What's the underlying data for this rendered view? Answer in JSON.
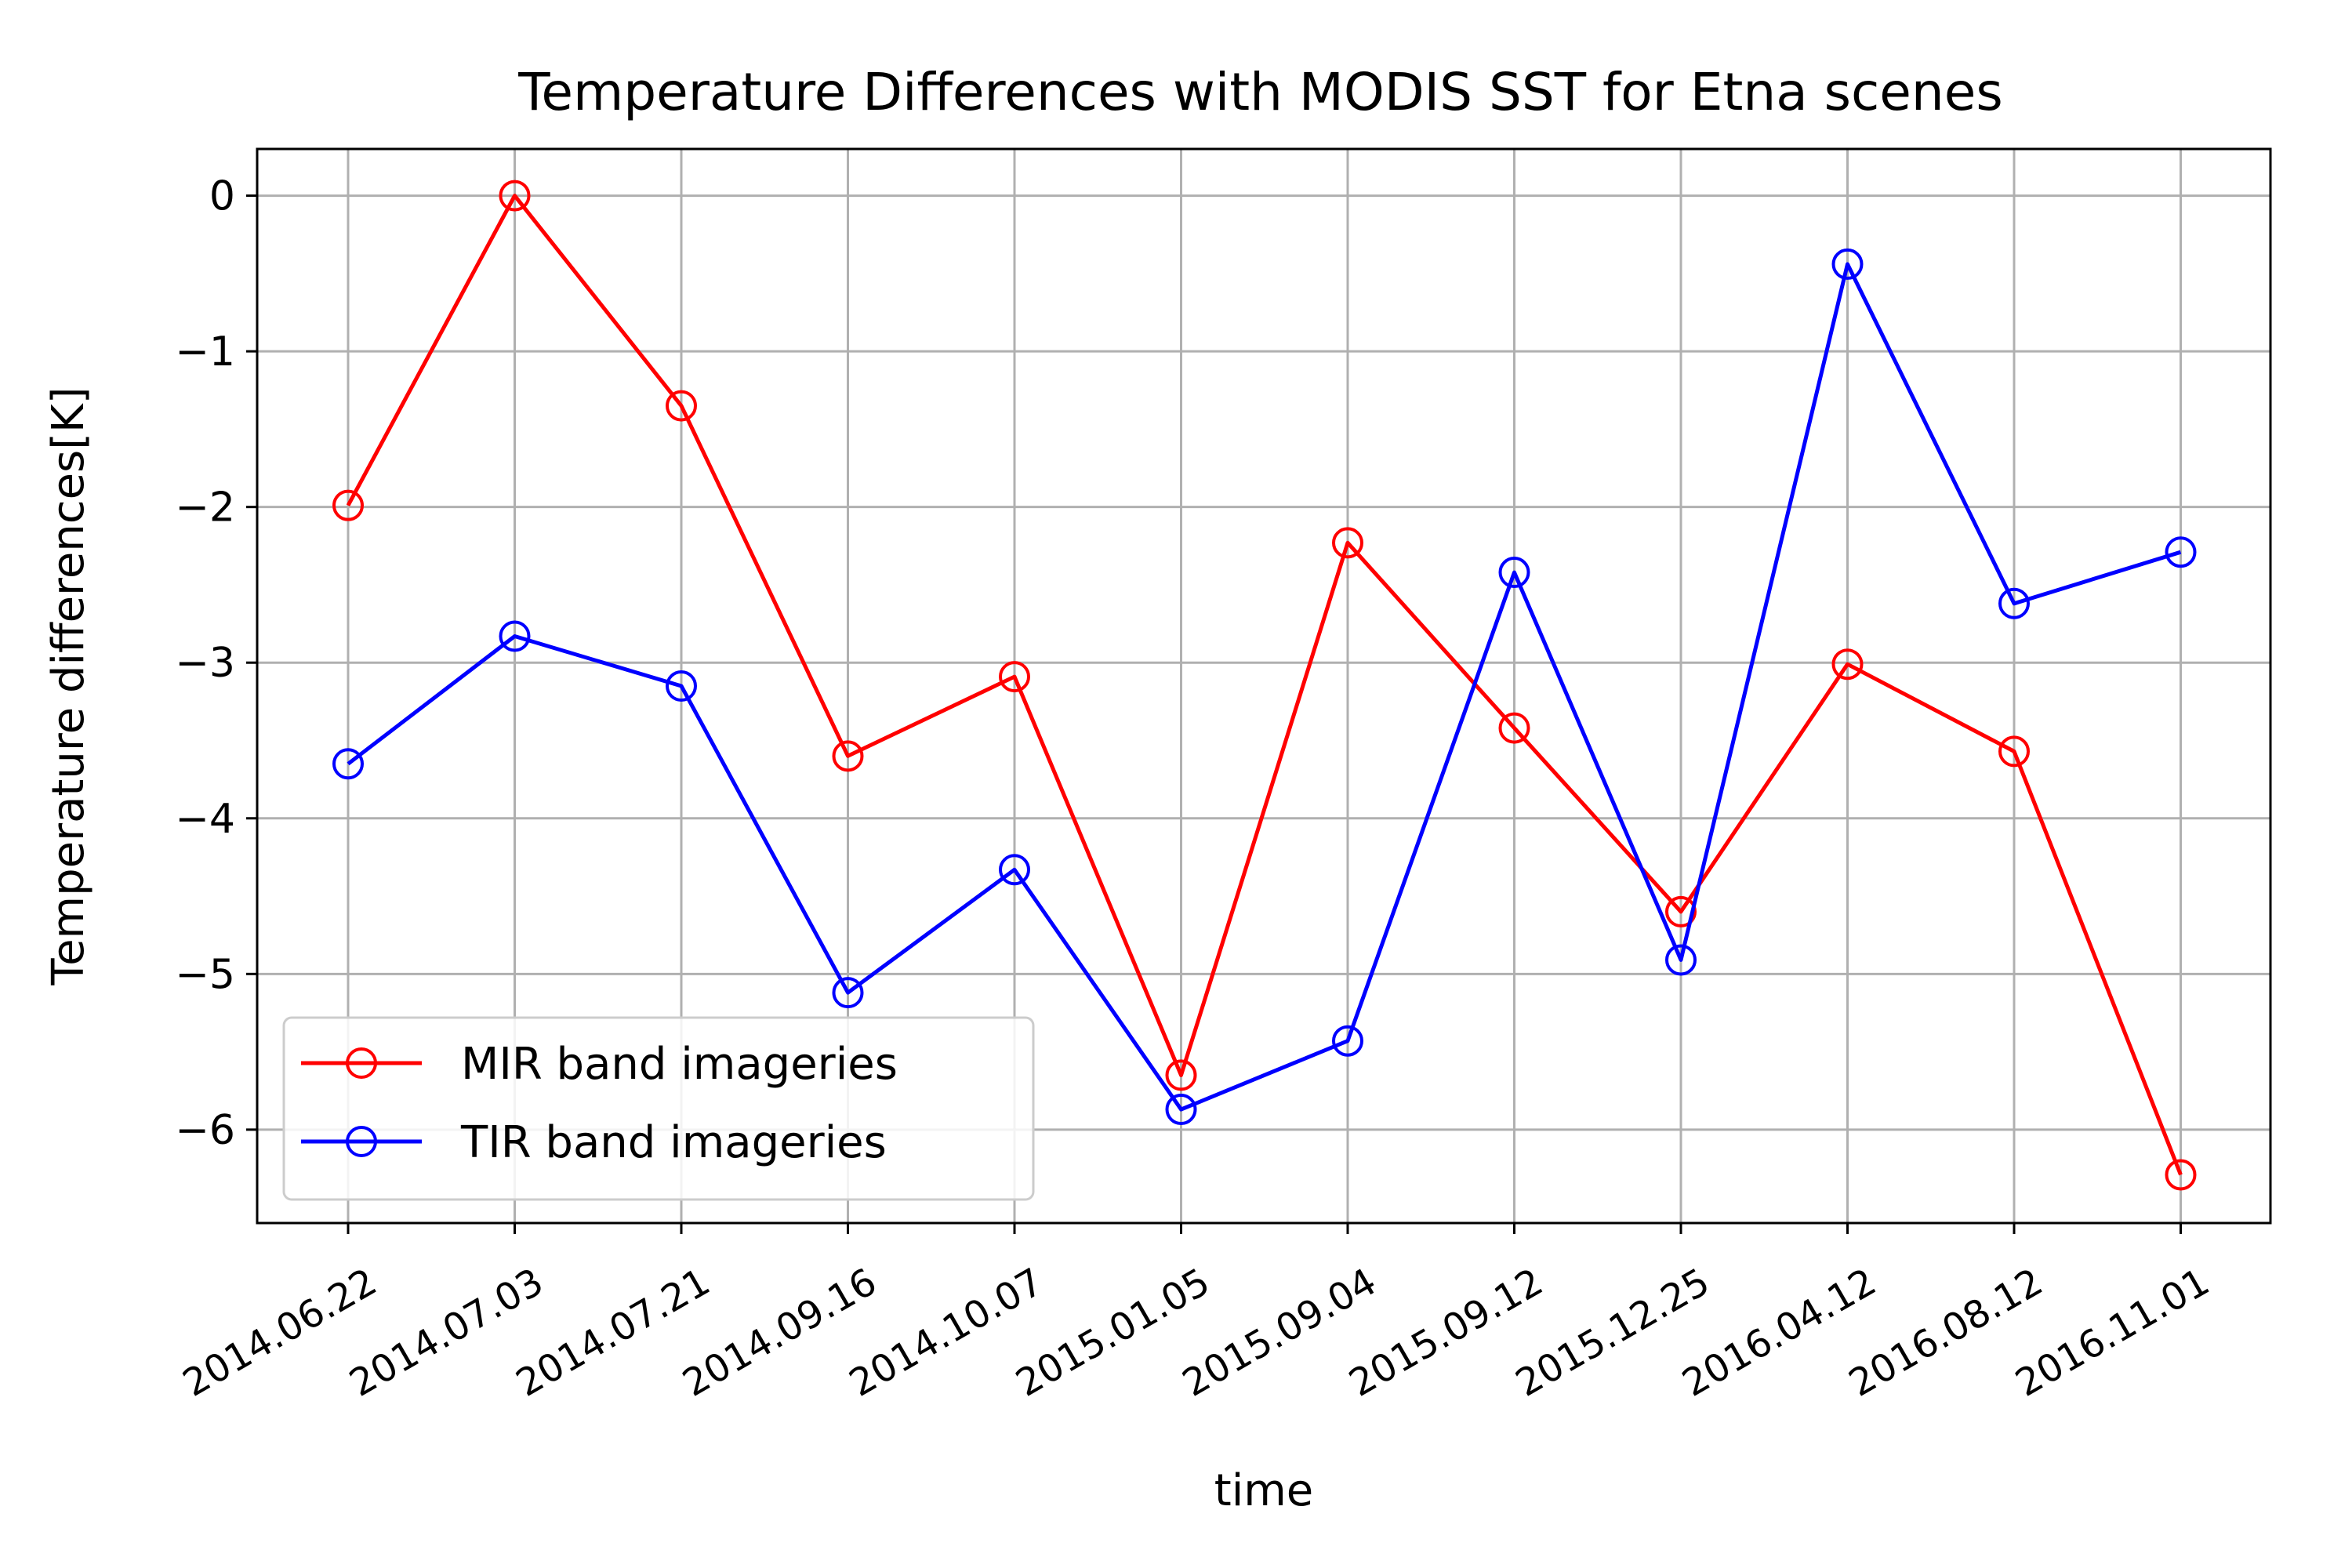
{
  "chart_data": {
    "type": "line",
    "title": "Temperature Differences with MODIS SST for Etna scenes",
    "xlabel": "time",
    "ylabel": "Temperature differences[K]",
    "categories": [
      "2014.06.22",
      "2014.07.03",
      "2014.07.21",
      "2014.09.16",
      "2014.10.07",
      "2015.01.05",
      "2015.09.04",
      "2015.09.12",
      "2015.12.25",
      "2016.04.12",
      "2016.08.12",
      "2016.11.01"
    ],
    "yticks": [
      "0",
      "−1",
      "−2",
      "−3",
      "−4",
      "−5",
      "−6"
    ],
    "ylim": [
      -6.6,
      0.3
    ],
    "grid": true,
    "legend_position": "lower-left",
    "series": [
      {
        "name": "MIR band imageries",
        "color": "#ff0000",
        "marker": "open-circle",
        "values": [
          -1.99,
          0.0,
          -1.35,
          -3.6,
          -3.09,
          -5.65,
          -2.23,
          -3.42,
          -4.6,
          -3.01,
          -3.57,
          -6.29
        ]
      },
      {
        "name": "TIR band imageries",
        "color": "#0000ff",
        "marker": "open-circle",
        "values": [
          -3.65,
          -2.83,
          -3.15,
          -5.12,
          -4.33,
          -5.87,
          -5.43,
          -2.42,
          -4.91,
          -0.44,
          -2.62,
          -2.29
        ]
      }
    ]
  }
}
